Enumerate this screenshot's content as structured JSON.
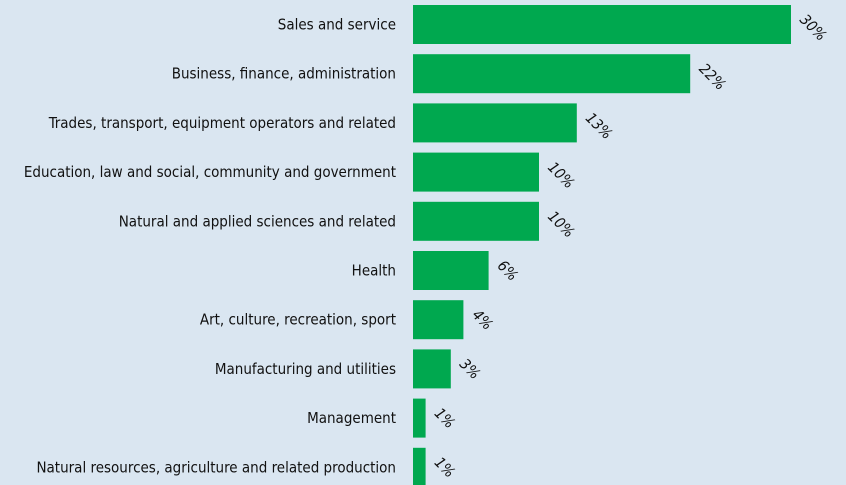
{
  "chart_data": {
    "type": "bar",
    "orientation": "horizontal",
    "categories": [
      "Sales and service",
      "Business, finance, administration",
      "Trades, transport, equipment operators and related",
      "Education, law and social, community and government",
      "Natural and applied sciences and related",
      "Health",
      "Art, culture, recreation, sport",
      "Manufacturing and utilities",
      "Management",
      "Natural resources, agriculture and related production"
    ],
    "values": [
      30,
      22,
      13,
      10,
      10,
      6,
      4,
      3,
      1,
      1
    ],
    "value_labels": [
      "30%",
      "22%",
      "13%",
      "10%",
      "10%",
      "6%",
      "4%",
      "3%",
      "1%",
      "1%"
    ],
    "title": "",
    "xlabel": "",
    "ylabel": "",
    "xlim": [
      0,
      30
    ],
    "grid": false,
    "legend": "none",
    "colors": {
      "bar": "#00a84f",
      "background": "#dae6f1",
      "text": "#111111"
    }
  }
}
